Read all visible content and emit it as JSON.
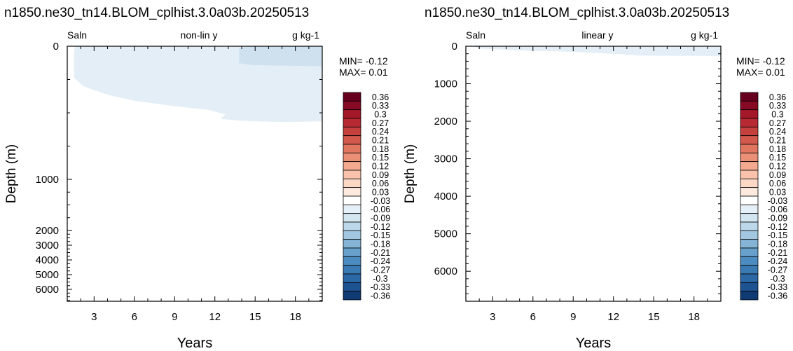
{
  "chart_data": [
    {
      "type": "heatmap",
      "title": "n1850.ne30_tn14.BLOM_cplhist.3.0a03b.20250513",
      "variable": "Saln",
      "subtitle": "non-lin y",
      "units": "g kg-1",
      "xlabel": "Years",
      "ylabel": "Depth (m)",
      "y_scale": "non-linear (stretched near surface)",
      "y_reversed": true,
      "xlim": [
        1,
        20
      ],
      "ylim": [
        0,
        6800
      ],
      "x_ticks": [
        3,
        6,
        9,
        12,
        15,
        18
      ],
      "y_ticks": [
        0,
        1000,
        2000,
        3000,
        4000,
        5000,
        6000
      ],
      "stats": {
        "min_label": "MIN= -0.12",
        "max_label": "MAX=  0.01"
      },
      "fields": [
        {
          "level": "0 to -0.03",
          "color": "#e3eef6",
          "boundary": [
            [
              1.1,
              0
            ],
            [
              20,
              0
            ],
            [
              20,
              565
            ],
            [
              17,
              570
            ],
            [
              14,
              560
            ],
            [
              12.4,
              545
            ],
            [
              12.8,
              512
            ],
            [
              11.5,
              478
            ],
            [
              9,
              450
            ],
            [
              6,
              410
            ],
            [
              4,
              365
            ],
            [
              2.2,
              300
            ],
            [
              1.5,
              235
            ],
            [
              1.5,
              30
            ],
            [
              1.6,
              0
            ]
          ]
        },
        {
          "level": "-0.03 to -0.06",
          "color": "#cfe1ef",
          "boundary": [
            [
              14.4,
              0
            ],
            [
              20,
              0
            ],
            [
              20,
              150
            ],
            [
              16.5,
              145
            ],
            [
              14.7,
              140
            ],
            [
              13.8,
              128
            ],
            [
              13.8,
              20
            ]
          ]
        }
      ]
    },
    {
      "type": "heatmap",
      "title": "n1850.ne30_tn14.BLOM_cplhist.3.0a03b.20250513",
      "variable": "Saln",
      "subtitle": "linear y",
      "units": "g kg-1",
      "xlabel": "Years",
      "ylabel": "Depth (m)",
      "y_scale": "linear",
      "y_reversed": true,
      "xlim": [
        1,
        20
      ],
      "ylim": [
        0,
        6800
      ],
      "x_ticks": [
        3,
        6,
        9,
        12,
        15,
        18
      ],
      "y_ticks": [
        0,
        1000,
        2000,
        3000,
        4000,
        5000,
        6000
      ],
      "stats": {
        "min_label": "MIN= -0.12",
        "max_label": "MAX=  0.01"
      },
      "fields": [
        {
          "level": "0 to -0.03",
          "color": "#e3eef6",
          "boundary": [
            [
              1.5,
              0
            ],
            [
              20,
              0
            ],
            [
              20,
              260
            ],
            [
              14,
              250
            ],
            [
              12.5,
              210
            ],
            [
              9,
              150
            ],
            [
              5,
              110
            ],
            [
              2,
              60
            ]
          ]
        }
      ]
    }
  ],
  "colorbar": {
    "labels": [
      "0.36",
      "0.33",
      "0.3",
      "0.27",
      "0.24",
      "0.21",
      "0.18",
      "0.15",
      "0.12",
      "0.09",
      "0.06",
      "0.03",
      "-0.03",
      "-0.06",
      "-0.09",
      "-0.12",
      "-0.15",
      "-0.18",
      "-0.21",
      "-0.24",
      "-0.27",
      "-0.3",
      "-0.33",
      "-0.36"
    ],
    "colors": [
      "#67001f",
      "#870a24",
      "#a51829",
      "#b82a33",
      "#c6413e",
      "#d3594c",
      "#e0765f",
      "#ea9076",
      "#f3aa8f",
      "#f8c3aa",
      "#fbd8c5",
      "#fde9dd",
      "#ffffff",
      "#e5eff7",
      "#d2e5f1",
      "#bdd7ea",
      "#a2c7e1",
      "#85b4d6",
      "#66a0cb",
      "#4d8cc0",
      "#3a7ab3",
      "#2c68a5",
      "#1d5391",
      "#0f3b72"
    ]
  }
}
